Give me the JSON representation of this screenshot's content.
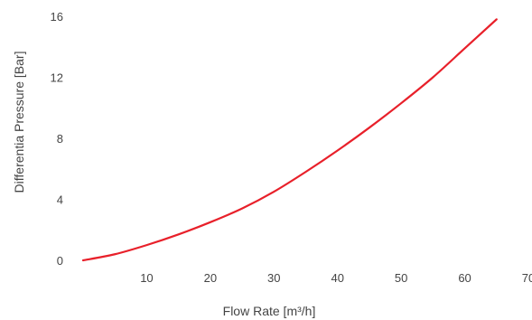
{
  "chart_data": {
    "type": "line",
    "xlabel": "Flow Rate [m³/h]",
    "ylabel": "Differentia Pressure [Bar]",
    "xlim": [
      0,
      70
    ],
    "ylim": [
      0,
      16
    ],
    "x_ticks": [
      "10",
      "20",
      "30",
      "40",
      "50",
      "60",
      "70"
    ],
    "y_ticks": [
      "0",
      "4",
      "8",
      "12",
      "16"
    ],
    "grid": false,
    "series": [
      {
        "color": "#e8202a",
        "x": [
          0,
          5,
          10,
          15,
          20,
          25,
          30,
          35,
          40,
          45,
          50,
          55,
          60,
          65
        ],
        "y": [
          0,
          0.4,
          1.0,
          1.7,
          2.5,
          3.4,
          4.5,
          5.8,
          7.2,
          8.7,
          10.3,
          12.0,
          13.9,
          15.8
        ]
      }
    ]
  }
}
